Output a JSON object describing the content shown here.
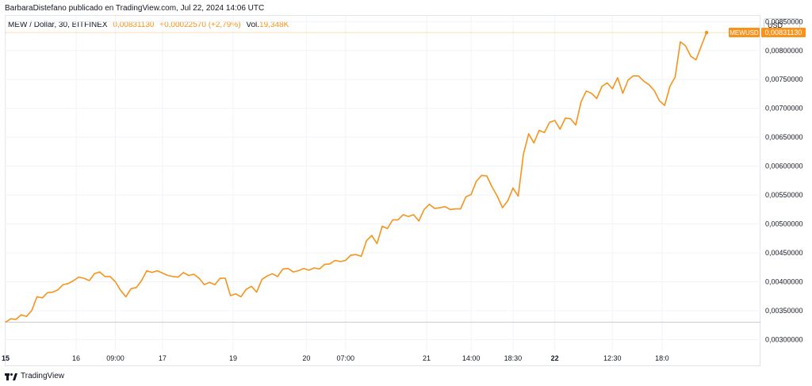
{
  "header": {
    "attribution": "BarbaraDistefano publicado en TradingView.com, Jul 22, 2024 14:06 UTC"
  },
  "legend": {
    "symbol": "MEW / Dollar, 30, BITFINEX",
    "last": "0,00831130",
    "change": "+0,00022570 (+2,79%)",
    "vol_label": "Vol.",
    "vol_value": "19,348K"
  },
  "currency_label": "USD",
  "price_tag": {
    "symbol": "MEWUSD",
    "value": "0,00831130"
  },
  "footer": {
    "brand": "TradingView"
  },
  "colors": {
    "line": "#f7931a",
    "tag_bg": "#f7931a",
    "grid": "#f0f3fa"
  },
  "chart_data": {
    "type": "line",
    "series": [
      {
        "values": [
          0.0033,
          0.00336,
          0.00335,
          0.00343,
          0.0034,
          0.0035,
          0.00374,
          0.00372,
          0.00381,
          0.00382,
          0.00386,
          0.00395,
          0.00397,
          0.00402,
          0.00408,
          0.00406,
          0.00402,
          0.00414,
          0.00417,
          0.00409,
          0.00409,
          0.004,
          0.00385,
          0.00374,
          0.00388,
          0.0039,
          0.00402,
          0.00419,
          0.00416,
          0.00419,
          0.00415,
          0.00411,
          0.00409,
          0.00408,
          0.00416,
          0.00411,
          0.00413,
          0.00406,
          0.00395,
          0.00399,
          0.00395,
          0.00406,
          0.00406,
          0.00376,
          0.00379,
          0.00374,
          0.00387,
          0.00392,
          0.00382,
          0.00404,
          0.0041,
          0.00414,
          0.00409,
          0.00422,
          0.00423,
          0.00417,
          0.00419,
          0.00423,
          0.0042,
          0.00424,
          0.00422,
          0.0043,
          0.00431,
          0.00437,
          0.00435,
          0.00437,
          0.00446,
          0.00447,
          0.00444,
          0.00471,
          0.0048,
          0.00466,
          0.00496,
          0.00492,
          0.00507,
          0.00507,
          0.00516,
          0.00513,
          0.00516,
          0.00505,
          0.00525,
          0.00534,
          0.00527,
          0.00528,
          0.0053,
          0.00525,
          0.00526,
          0.00526,
          0.00547,
          0.00551,
          0.00574,
          0.00584,
          0.00583,
          0.00564,
          0.00548,
          0.00528,
          0.0054,
          0.00562,
          0.00548,
          0.00621,
          0.00656,
          0.0064,
          0.00662,
          0.00658,
          0.00676,
          0.00679,
          0.00664,
          0.00683,
          0.00682,
          0.00671,
          0.00711,
          0.0073,
          0.00726,
          0.00717,
          0.00738,
          0.00744,
          0.00734,
          0.00753,
          0.00726,
          0.00749,
          0.00756,
          0.00756,
          0.00747,
          0.00741,
          0.00731,
          0.00713,
          0.00705,
          0.00738,
          0.00754,
          0.00815,
          0.00808,
          0.0079,
          0.00784,
          0.00808,
          0.008311
        ]
      }
    ],
    "y_ticks": [
      "0,00850000",
      "0,00800000",
      "0,00750000",
      "0,00700000",
      "0,00650000",
      "0,00600000",
      "0,00550000",
      "0,00500000",
      "0,00450000",
      "0,00400000",
      "0,00350000",
      "0,00300000"
    ],
    "y_tick_values": [
      0.0085,
      0.008,
      0.0075,
      0.007,
      0.0065,
      0.006,
      0.0055,
      0.005,
      0.0045,
      0.004,
      0.0035,
      0.003
    ],
    "ylim": [
      0.0028,
      0.0086
    ],
    "x_ticks": [
      "15",
      "16",
      "09:00",
      "17",
      "19",
      "20",
      "07:00",
      "21",
      "14:00",
      "18:30",
      "22",
      "12:30",
      "18:0"
    ],
    "x_tick_bold": [
      true,
      false,
      false,
      false,
      false,
      false,
      false,
      false,
      false,
      false,
      true,
      false,
      false
    ],
    "x_tick_index": [
      0,
      13.5,
      21,
      30,
      43.5,
      57.5,
      65,
      80.5,
      89,
      97,
      105,
      116,
      125.5
    ],
    "last_value": 0.0083113,
    "grid": true
  }
}
